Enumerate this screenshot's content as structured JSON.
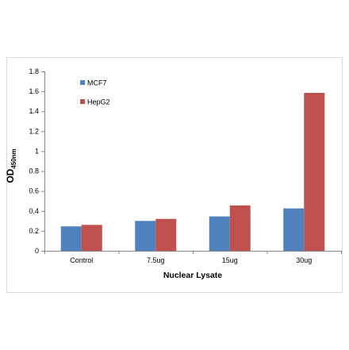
{
  "chart_data": {
    "type": "bar",
    "categories": [
      "Control",
      "7.5ug",
      "15ug",
      "30ug"
    ],
    "series": [
      {
        "name": "MCF7",
        "values": [
          0.245,
          0.3,
          0.345,
          0.425
        ],
        "color": "#4f81bd"
      },
      {
        "name": "HepG2",
        "values": [
          0.26,
          0.32,
          0.455,
          1.585
        ],
        "color": "#c0504d"
      }
    ],
    "title": "",
    "xlabel": "Nuclear Lysate",
    "ylabel": "OD",
    "ylabel_subscript": "450nm",
    "ylim": [
      0,
      1.8
    ],
    "yticks": [
      "0",
      "0.2",
      "0.4",
      "0.6",
      "0.8",
      "1",
      "1.2",
      "1.4",
      "1.6",
      "1.8"
    ],
    "grid": false,
    "legend_position": "top-left"
  }
}
